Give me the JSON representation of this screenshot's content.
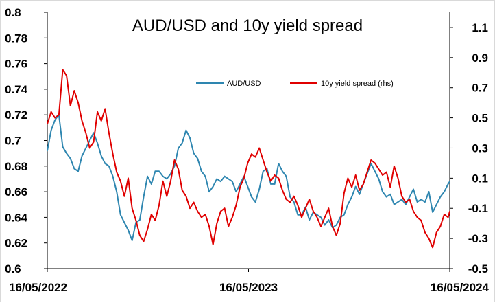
{
  "chart_data": {
    "type": "line",
    "title": "AUD/USD and 10y yield spread",
    "xlabel": "",
    "ylabel_left": "",
    "ylabel_right": "",
    "x_range": [
      "2022-05-16",
      "2024-05-16"
    ],
    "x_tick_labels": [
      "16/05/2022",
      "16/05/2023",
      "16/05/2024"
    ],
    "ylim_left": [
      0.6,
      0.8
    ],
    "ylim_right": [
      -0.5,
      1.2
    ],
    "y_tick_labels_left": [
      "0.6",
      "0.62",
      "0.64",
      "0.66",
      "0.68",
      "0.7",
      "0.72",
      "0.74",
      "0.76",
      "0.78",
      "0.8"
    ],
    "y_tick_labels_right": [
      "-0.5",
      "-0.3",
      "-0.1",
      "0.1",
      "0.3",
      "0.5",
      "0.7",
      "0.9",
      "1.1"
    ],
    "grid": false,
    "legend_position": "top-center",
    "series": [
      {
        "name": "AUD/USD",
        "axis": "left",
        "color": "#2e86b0",
        "points": [
          [
            "2022-05-16",
            0.692
          ],
          [
            "2022-05-23",
            0.708
          ],
          [
            "2022-05-30",
            0.716
          ],
          [
            "2022-06-06",
            0.72
          ],
          [
            "2022-06-13",
            0.695
          ],
          [
            "2022-06-20",
            0.69
          ],
          [
            "2022-06-27",
            0.686
          ],
          [
            "2022-07-04",
            0.678
          ],
          [
            "2022-07-11",
            0.676
          ],
          [
            "2022-07-18",
            0.688
          ],
          [
            "2022-07-25",
            0.694
          ],
          [
            "2022-08-01",
            0.7
          ],
          [
            "2022-08-08",
            0.706
          ],
          [
            "2022-08-15",
            0.698
          ],
          [
            "2022-08-22",
            0.688
          ],
          [
            "2022-08-29",
            0.682
          ],
          [
            "2022-09-05",
            0.68
          ],
          [
            "2022-09-12",
            0.672
          ],
          [
            "2022-09-19",
            0.66
          ],
          [
            "2022-09-26",
            0.642
          ],
          [
            "2022-10-03",
            0.636
          ],
          [
            "2022-10-10",
            0.63
          ],
          [
            "2022-10-17",
            0.622
          ],
          [
            "2022-10-24",
            0.636
          ],
          [
            "2022-10-31",
            0.638
          ],
          [
            "2022-11-07",
            0.656
          ],
          [
            "2022-11-14",
            0.672
          ],
          [
            "2022-11-21",
            0.666
          ],
          [
            "2022-11-28",
            0.676
          ],
          [
            "2022-12-05",
            0.676
          ],
          [
            "2022-12-12",
            0.672
          ],
          [
            "2022-12-19",
            0.67
          ],
          [
            "2022-12-26",
            0.674
          ],
          [
            "2023-01-02",
            0.68
          ],
          [
            "2023-01-09",
            0.694
          ],
          [
            "2023-01-16",
            0.698
          ],
          [
            "2023-01-23",
            0.708
          ],
          [
            "2023-01-30",
            0.702
          ],
          [
            "2023-02-06",
            0.69
          ],
          [
            "2023-02-13",
            0.686
          ],
          [
            "2023-02-20",
            0.676
          ],
          [
            "2023-02-27",
            0.672
          ],
          [
            "2023-03-06",
            0.66
          ],
          [
            "2023-03-13",
            0.664
          ],
          [
            "2023-03-20",
            0.67
          ],
          [
            "2023-03-27",
            0.668
          ],
          [
            "2023-04-03",
            0.672
          ],
          [
            "2023-04-10",
            0.67
          ],
          [
            "2023-04-17",
            0.668
          ],
          [
            "2023-04-24",
            0.66
          ],
          [
            "2023-05-01",
            0.666
          ],
          [
            "2023-05-08",
            0.672
          ],
          [
            "2023-05-15",
            0.664
          ],
          [
            "2023-05-22",
            0.656
          ],
          [
            "2023-05-29",
            0.652
          ],
          [
            "2023-06-05",
            0.662
          ],
          [
            "2023-06-12",
            0.676
          ],
          [
            "2023-06-19",
            0.678
          ],
          [
            "2023-06-26",
            0.666
          ],
          [
            "2023-07-03",
            0.666
          ],
          [
            "2023-07-10",
            0.682
          ],
          [
            "2023-07-17",
            0.676
          ],
          [
            "2023-07-24",
            0.672
          ],
          [
            "2023-07-31",
            0.656
          ],
          [
            "2023-08-07",
            0.652
          ],
          [
            "2023-08-14",
            0.642
          ],
          [
            "2023-08-21",
            0.642
          ],
          [
            "2023-08-28",
            0.648
          ],
          [
            "2023-09-04",
            0.638
          ],
          [
            "2023-09-11",
            0.644
          ],
          [
            "2023-09-18",
            0.642
          ],
          [
            "2023-09-25",
            0.64
          ],
          [
            "2023-10-02",
            0.634
          ],
          [
            "2023-10-09",
            0.638
          ],
          [
            "2023-10-16",
            0.632
          ],
          [
            "2023-10-23",
            0.634
          ],
          [
            "2023-10-30",
            0.64
          ],
          [
            "2023-11-06",
            0.642
          ],
          [
            "2023-11-13",
            0.65
          ],
          [
            "2023-11-20",
            0.656
          ],
          [
            "2023-11-27",
            0.664
          ],
          [
            "2023-12-04",
            0.658
          ],
          [
            "2023-12-11",
            0.666
          ],
          [
            "2023-12-18",
            0.674
          ],
          [
            "2023-12-25",
            0.682
          ],
          [
            "2024-01-01",
            0.676
          ],
          [
            "2024-01-08",
            0.67
          ],
          [
            "2024-01-15",
            0.66
          ],
          [
            "2024-01-22",
            0.656
          ],
          [
            "2024-01-29",
            0.658
          ],
          [
            "2024-02-05",
            0.65
          ],
          [
            "2024-02-12",
            0.652
          ],
          [
            "2024-02-19",
            0.654
          ],
          [
            "2024-02-26",
            0.65
          ],
          [
            "2024-03-04",
            0.656
          ],
          [
            "2024-03-11",
            0.662
          ],
          [
            "2024-03-18",
            0.652
          ],
          [
            "2024-03-25",
            0.654
          ],
          [
            "2024-04-01",
            0.652
          ],
          [
            "2024-04-08",
            0.66
          ],
          [
            "2024-04-15",
            0.644
          ],
          [
            "2024-04-22",
            0.65
          ],
          [
            "2024-04-29",
            0.656
          ],
          [
            "2024-05-06",
            0.66
          ],
          [
            "2024-05-13",
            0.666
          ],
          [
            "2024-05-16",
            0.668
          ]
        ]
      },
      {
        "name": "10y yield spread (rhs)",
        "axis": "right",
        "color": "#e00000",
        "points": [
          [
            "2022-05-16",
            0.46
          ],
          [
            "2022-05-23",
            0.54
          ],
          [
            "2022-05-30",
            0.5
          ],
          [
            "2022-06-06",
            0.52
          ],
          [
            "2022-06-13",
            0.82
          ],
          [
            "2022-06-20",
            0.78
          ],
          [
            "2022-06-27",
            0.58
          ],
          [
            "2022-07-04",
            0.68
          ],
          [
            "2022-07-11",
            0.6
          ],
          [
            "2022-07-18",
            0.48
          ],
          [
            "2022-07-25",
            0.4
          ],
          [
            "2022-08-01",
            0.3
          ],
          [
            "2022-08-08",
            0.34
          ],
          [
            "2022-08-15",
            0.54
          ],
          [
            "2022-08-22",
            0.48
          ],
          [
            "2022-08-29",
            0.56
          ],
          [
            "2022-09-05",
            0.4
          ],
          [
            "2022-09-12",
            0.26
          ],
          [
            "2022-09-19",
            0.14
          ],
          [
            "2022-09-26",
            0.08
          ],
          [
            "2022-10-03",
            -0.02
          ],
          [
            "2022-10-10",
            0.1
          ],
          [
            "2022-10-17",
            -0.1
          ],
          [
            "2022-10-24",
            -0.18
          ],
          [
            "2022-10-31",
            -0.28
          ],
          [
            "2022-11-07",
            -0.32
          ],
          [
            "2022-11-14",
            -0.24
          ],
          [
            "2022-11-21",
            -0.14
          ],
          [
            "2022-11-28",
            -0.18
          ],
          [
            "2022-12-05",
            -0.08
          ],
          [
            "2022-12-12",
            0.08
          ],
          [
            "2022-12-19",
            -0.02
          ],
          [
            "2022-12-26",
            0.08
          ],
          [
            "2023-01-02",
            0.22
          ],
          [
            "2023-01-09",
            0.16
          ],
          [
            "2023-01-16",
            0.02
          ],
          [
            "2023-01-23",
            -0.02
          ],
          [
            "2023-01-30",
            -0.1
          ],
          [
            "2023-02-06",
            -0.06
          ],
          [
            "2023-02-13",
            -0.12
          ],
          [
            "2023-02-20",
            -0.16
          ],
          [
            "2023-02-27",
            -0.14
          ],
          [
            "2023-03-06",
            -0.22
          ],
          [
            "2023-03-13",
            -0.34
          ],
          [
            "2023-03-20",
            -0.2
          ],
          [
            "2023-03-27",
            -0.12
          ],
          [
            "2023-04-03",
            -0.1
          ],
          [
            "2023-04-10",
            -0.22
          ],
          [
            "2023-04-17",
            -0.16
          ],
          [
            "2023-04-24",
            -0.08
          ],
          [
            "2023-05-01",
            0.04
          ],
          [
            "2023-05-08",
            0.1
          ],
          [
            "2023-05-15",
            0.2
          ],
          [
            "2023-05-22",
            0.26
          ],
          [
            "2023-05-29",
            0.24
          ],
          [
            "2023-06-05",
            0.3
          ],
          [
            "2023-06-12",
            0.22
          ],
          [
            "2023-06-19",
            0.14
          ],
          [
            "2023-06-26",
            0.08
          ],
          [
            "2023-07-03",
            0.12
          ],
          [
            "2023-07-10",
            0.1
          ],
          [
            "2023-07-17",
            0.02
          ],
          [
            "2023-07-24",
            -0.04
          ],
          [
            "2023-07-31",
            -0.06
          ],
          [
            "2023-08-07",
            -0.02
          ],
          [
            "2023-08-14",
            -0.08
          ],
          [
            "2023-08-21",
            -0.16
          ],
          [
            "2023-08-28",
            -0.1
          ],
          [
            "2023-09-04",
            -0.04
          ],
          [
            "2023-09-11",
            -0.12
          ],
          [
            "2023-09-18",
            -0.16
          ],
          [
            "2023-09-25",
            -0.22
          ],
          [
            "2023-10-02",
            -0.16
          ],
          [
            "2023-10-09",
            -0.1
          ],
          [
            "2023-10-16",
            -0.22
          ],
          [
            "2023-10-23",
            -0.28
          ],
          [
            "2023-10-30",
            -0.2
          ],
          [
            "2023-11-06",
            0.0
          ],
          [
            "2023-11-13",
            0.1
          ],
          [
            "2023-11-20",
            0.04
          ],
          [
            "2023-11-27",
            0.12
          ],
          [
            "2023-12-04",
            0.02
          ],
          [
            "2023-12-11",
            0.06
          ],
          [
            "2023-12-18",
            0.14
          ],
          [
            "2023-12-25",
            0.22
          ],
          [
            "2024-01-01",
            0.2
          ],
          [
            "2024-01-08",
            0.16
          ],
          [
            "2024-01-15",
            0.12
          ],
          [
            "2024-01-22",
            0.14
          ],
          [
            "2024-01-29",
            0.04
          ],
          [
            "2024-02-05",
            0.18
          ],
          [
            "2024-02-12",
            0.1
          ],
          [
            "2024-02-19",
            -0.02
          ],
          [
            "2024-02-26",
            -0.06
          ],
          [
            "2024-03-04",
            -0.04
          ],
          [
            "2024-03-11",
            -0.12
          ],
          [
            "2024-03-18",
            -0.16
          ],
          [
            "2024-03-25",
            -0.18
          ],
          [
            "2024-04-01",
            -0.26
          ],
          [
            "2024-04-08",
            -0.3
          ],
          [
            "2024-04-15",
            -0.36
          ],
          [
            "2024-04-22",
            -0.26
          ],
          [
            "2024-04-29",
            -0.22
          ],
          [
            "2024-05-06",
            -0.14
          ],
          [
            "2024-05-13",
            -0.16
          ],
          [
            "2024-05-16",
            -0.12
          ]
        ]
      }
    ]
  }
}
